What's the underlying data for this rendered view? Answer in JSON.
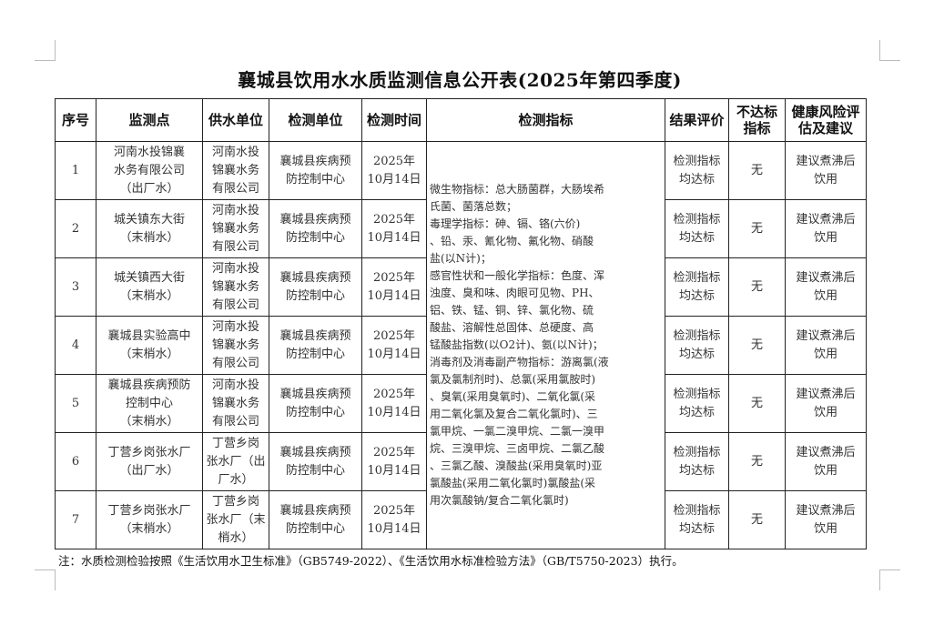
{
  "title": "襄城县饮用水水质监测信息公开表(2025年第四季度)",
  "headers": [
    "序号",
    "监测点",
    "供水单位",
    "检测单位",
    "检测时间",
    "检测指标",
    "结果评价",
    "不达标\n指标",
    "健康风险评\n估及建议"
  ],
  "rows": [
    {
      "no": "1",
      "point": "河南水投锦襄\n水务有限公司\n（出厂水）",
      "supplier": "河南水投\n锦襄水务\n有限公司",
      "lab": "襄城县疾病预\n防控制中心",
      "time": "2025年\n10月14日",
      "result": "检测指标\n均达标",
      "fail": "无",
      "advice": "建议煮沸后\n饮用"
    },
    {
      "no": "2",
      "point": "城关镇东大街\n（末梢水）",
      "supplier": "河南水投\n锦襄水务\n有限公司",
      "lab": "襄城县疾病预\n防控制中心",
      "time": "2025年\n10月14日",
      "result": "检测指标\n均达标",
      "fail": "无",
      "advice": "建议煮沸后\n饮用"
    },
    {
      "no": "3",
      "point": "城关镇西大街\n（末梢水）",
      "supplier": "河南水投\n锦襄水务\n有限公司",
      "lab": "襄城县疾病预\n防控制中心",
      "time": "2025年\n10月14日",
      "result": "检测指标\n均达标",
      "fail": "无",
      "advice": "建议煮沸后\n饮用"
    },
    {
      "no": "4",
      "point": "襄城县实验高中\n（末梢水）",
      "supplier": "河南水投\n锦襄水务\n有限公司",
      "lab": "襄城县疾病预\n防控制中心",
      "time": "2025年\n10月14日",
      "result": "检测指标\n均达标",
      "fail": "无",
      "advice": "建议煮沸后\n饮用"
    },
    {
      "no": "5",
      "point": "襄城县疾病预防\n控制中心\n（末梢水）",
      "supplier": "河南水投\n锦襄水务\n有限公司",
      "lab": "襄城县疾病预\n防控制中心",
      "time": "2025年\n10月14日",
      "result": "检测指标\n均达标",
      "fail": "无",
      "advice": "建议煮沸后\n饮用"
    },
    {
      "no": "6",
      "point": "丁营乡岗张水厂\n（出厂水）",
      "supplier": "丁营乡岗\n张水厂（出\n厂水）",
      "lab": "襄城县疾病预\n防控制中心",
      "time": "2025年\n10月14日",
      "result": "检测指标\n均达标",
      "fail": "无",
      "advice": "建议煮沸后\n饮用"
    },
    {
      "no": "7",
      "point": "丁营乡岗张水厂\n（末梢水）",
      "supplier": "丁营乡岗\n张水厂（末\n梢水）",
      "lab": "襄城县疾病预\n防控制中心",
      "time": "2025年\n10月14日",
      "result": "检测指标\n均达标",
      "fail": "无",
      "advice": "建议煮沸后\n饮用"
    }
  ],
  "indicators": "微生物指标：总大肠菌群，大肠埃希\n氏菌、菌落总数；\n 毒理学指标：砷、镉、铬(六价)\n、铅、汞、氰化物、氟化物、硝酸\n盐(以N计)；\n感官性状和一般化学指标：色度、浑\n 浊度、臭和味、肉眼可见物、PH、\n 铝、铁、锰、铜、锌、氯化物、硫\n 酸盐、溶解性总固体、总硬度、高\n 锰酸盐指数(以O2计)、氨(以N计)；\n消毒剂及消毒副产物指标：游离氯(液\n氯及氯制剂时)、总氯(采用氯胺时)\n、臭氧(采用臭氧时)、二氧化氯(采\n用二氧化氯及复合二氧化氯时)、三\n氯甲烷、一氯二溴甲烷、二氯一溴甲\n烷、三溴甲烷、三卤甲烷、二氯乙酸\n、三氯乙酸、溴酸盐(采用臭氧时)亚\n氯酸盐(采用二氧化氯时)氯酸盐(采\n用次氯酸钠/复合二氧化氯时)",
  "note": "注：水质检测检验按照《生活饮用水卫生标准》（GB5749-2022）、《生活饮用水标准检验方法》（GB/T5750-2023）执行。"
}
